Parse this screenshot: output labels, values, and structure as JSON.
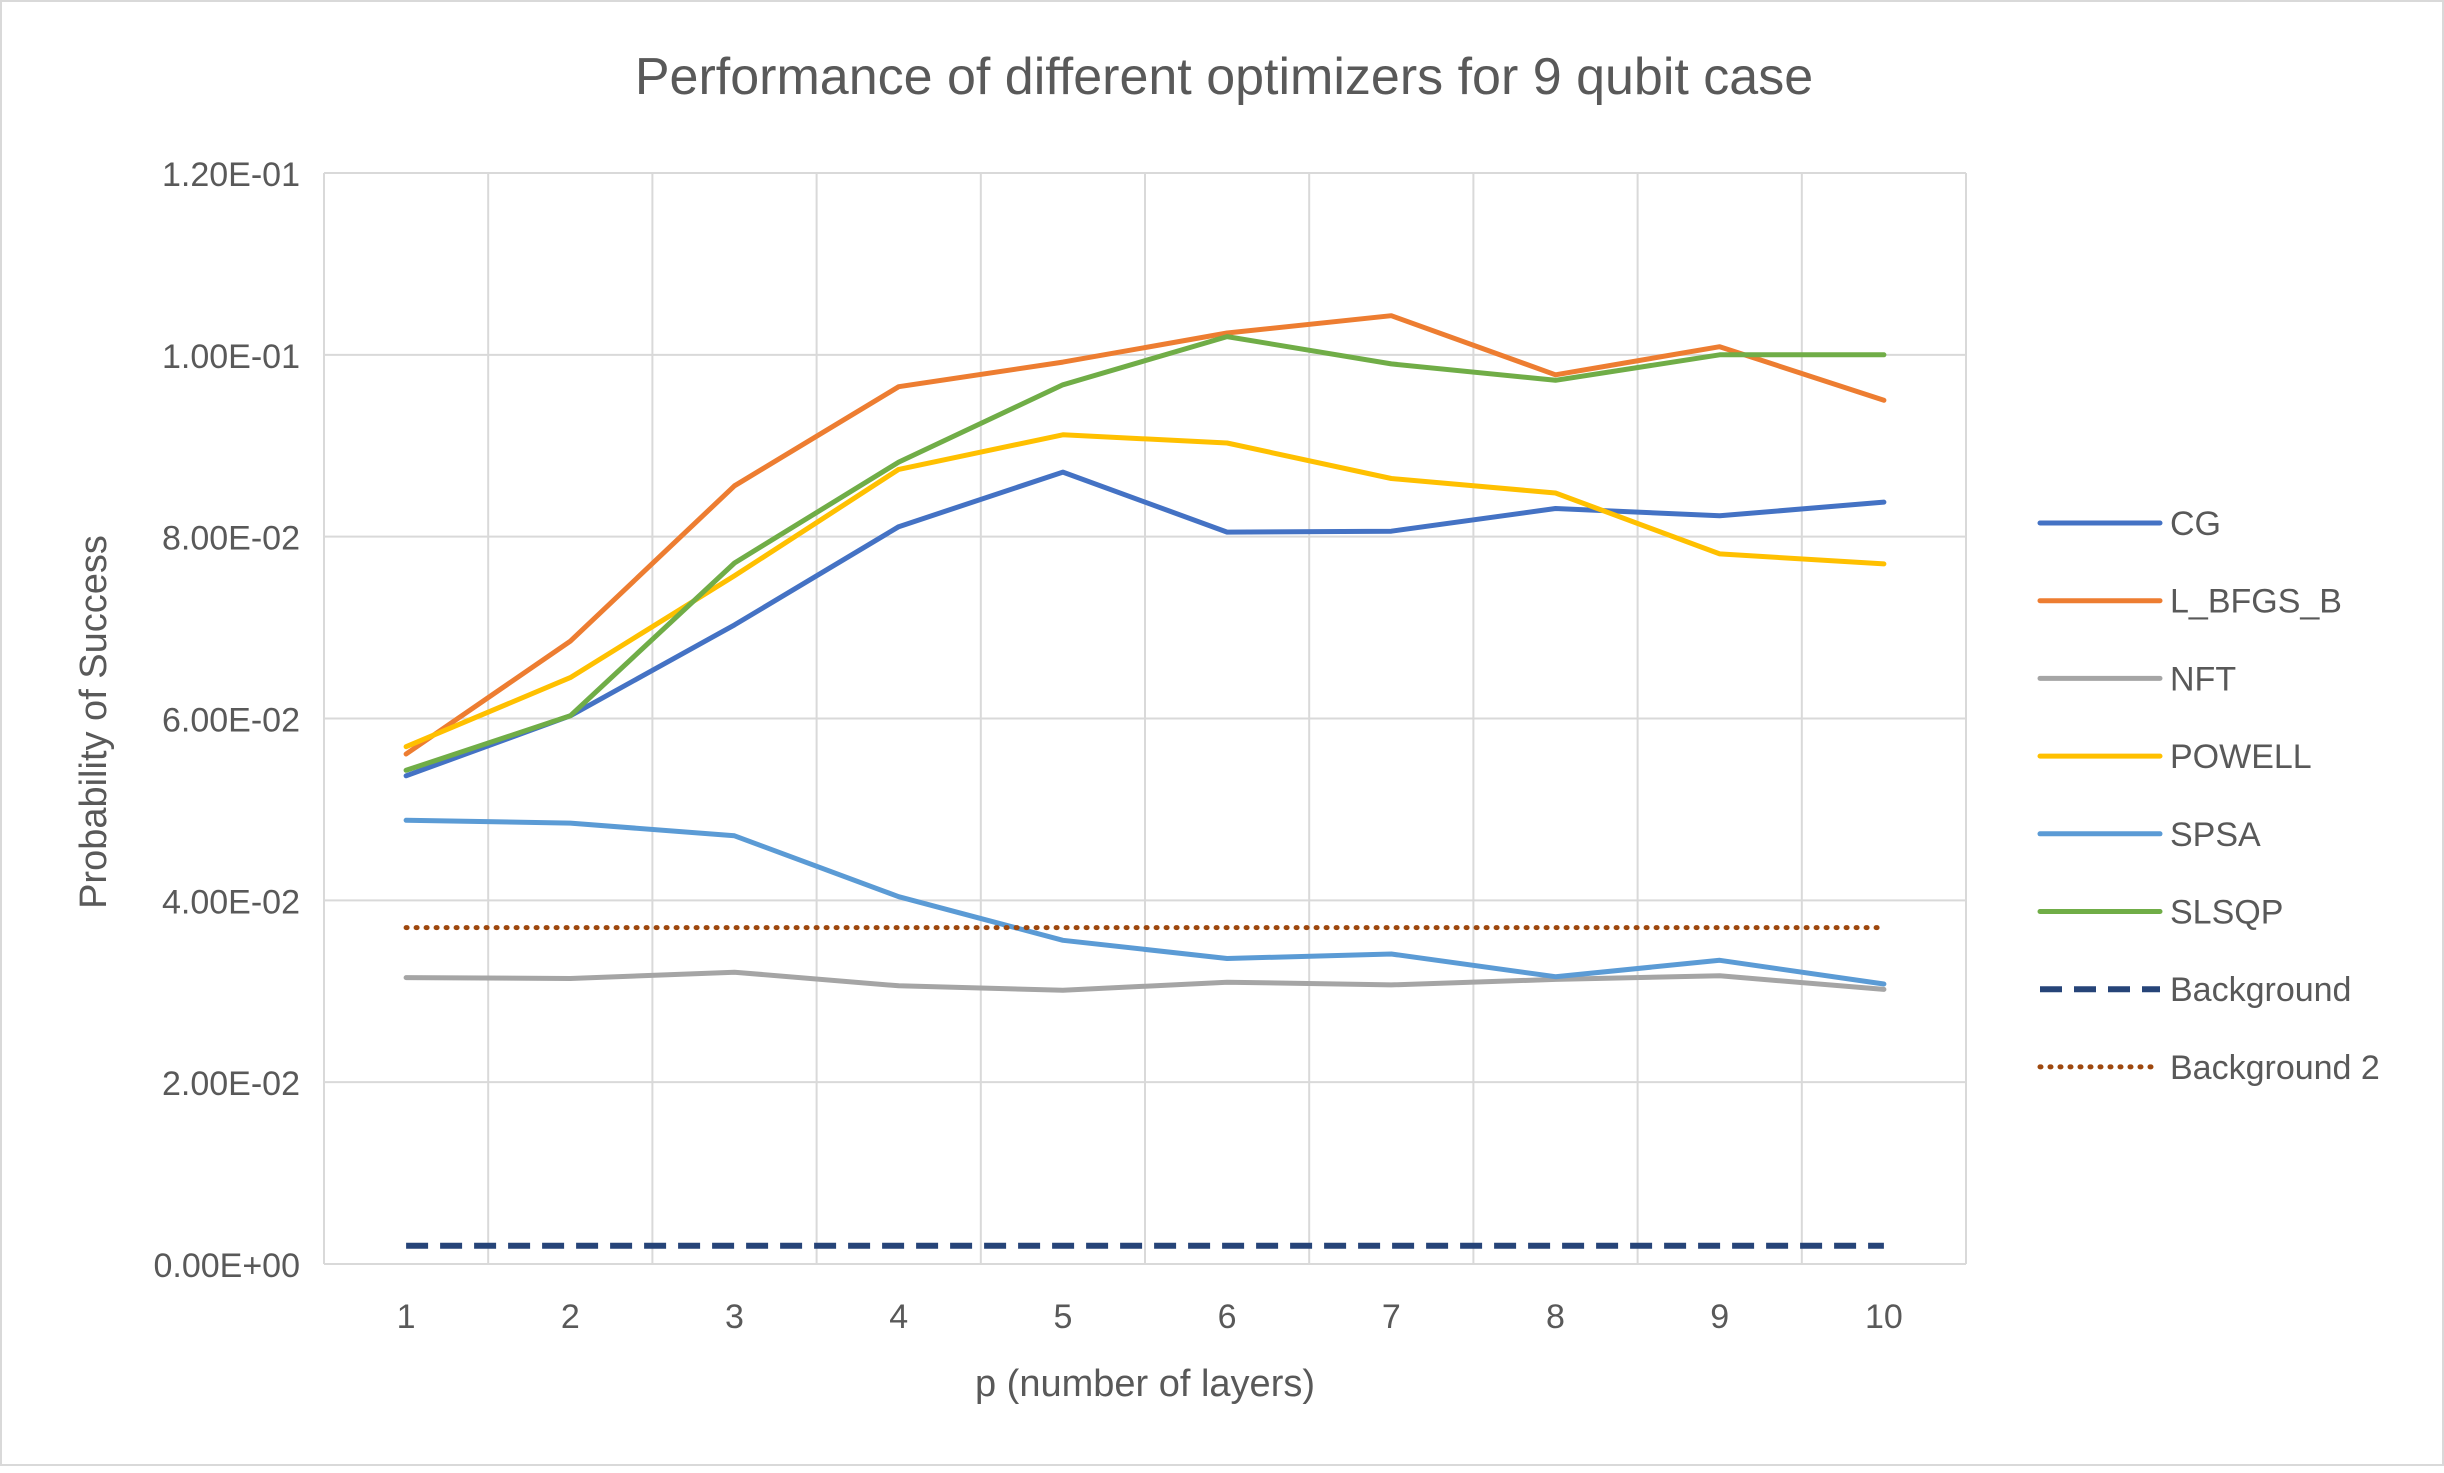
{
  "chart_data": {
    "type": "line",
    "title": "Performance of different optimizers for 9 qubit case",
    "xlabel": "p (number of layers)",
    "ylabel": "Probability of Success",
    "x": [
      1,
      2,
      3,
      4,
      5,
      6,
      7,
      8,
      9,
      10
    ],
    "x_tick_labels": [
      "1",
      "2",
      "3",
      "4",
      "5",
      "6",
      "7",
      "8",
      "9",
      "10"
    ],
    "ylim": [
      0,
      0.12
    ],
    "y_ticks": [
      0,
      0.02,
      0.04,
      0.06,
      0.08,
      0.1,
      0.12
    ],
    "y_tick_labels": [
      "0.00E+00",
      "2.00E-02",
      "4.00E-02",
      "6.00E-02",
      "8.00E-02",
      "1.00E-01",
      "1.20E-01"
    ],
    "grid": true,
    "legend_position": "right",
    "series": [
      {
        "name": "CG",
        "color": "#4472C4",
        "style": "solid",
        "values": [
          0.0537,
          0.0603,
          0.0703,
          0.0811,
          0.0871,
          0.0805,
          0.0806,
          0.0831,
          0.0823,
          0.0838
        ]
      },
      {
        "name": "L_BFGS_B",
        "color": "#ED7D31",
        "style": "solid",
        "values": [
          0.0561,
          0.0685,
          0.0856,
          0.0965,
          0.0992,
          0.1024,
          0.1043,
          0.0978,
          0.1009,
          0.095
        ]
      },
      {
        "name": "NFT",
        "color": "#A5A5A5",
        "style": "solid",
        "values": [
          0.0315,
          0.0314,
          0.0321,
          0.0306,
          0.0301,
          0.031,
          0.0307,
          0.0313,
          0.0317,
          0.0302
        ]
      },
      {
        "name": "POWELL",
        "color": "#FFC000",
        "style": "solid",
        "values": [
          0.0569,
          0.0645,
          0.0757,
          0.0874,
          0.0912,
          0.0903,
          0.0864,
          0.0848,
          0.0781,
          0.077
        ]
      },
      {
        "name": "SPSA",
        "color": "#5B9BD5",
        "style": "solid",
        "values": [
          0.0488,
          0.0485,
          0.0471,
          0.0404,
          0.0356,
          0.0336,
          0.0341,
          0.0316,
          0.0334,
          0.0308
        ]
      },
      {
        "name": "SLSQP",
        "color": "#70AD47",
        "style": "solid",
        "values": [
          0.0543,
          0.0603,
          0.0771,
          0.0882,
          0.0967,
          0.102,
          0.099,
          0.0972,
          0.1,
          0.1
        ]
      },
      {
        "name": "Background",
        "color": "#264478",
        "style": "dashed",
        "values": [
          0.002,
          0.002,
          0.002,
          0.002,
          0.002,
          0.002,
          0.002,
          0.002,
          0.002,
          0.002
        ]
      },
      {
        "name": "Background 2",
        "color": "#9E480E",
        "style": "dotted",
        "values": [
          0.037,
          0.037,
          0.037,
          0.037,
          0.037,
          0.037,
          0.037,
          0.037,
          0.037,
          0.037
        ]
      }
    ]
  }
}
